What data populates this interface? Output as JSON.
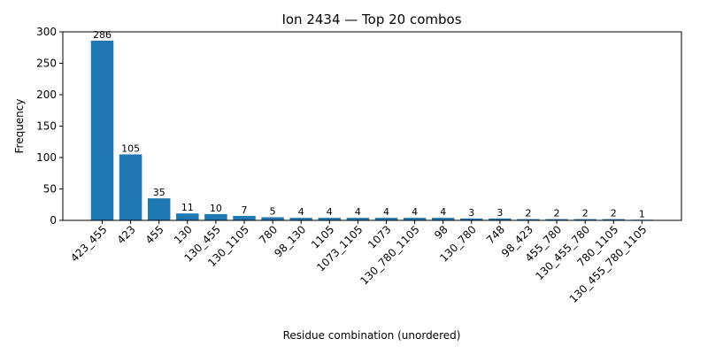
{
  "chart_data": {
    "type": "bar",
    "title": "Ion 2434 — Top 20 combos",
    "xlabel": "Residue combination (unordered)",
    "ylabel": "Frequency",
    "ylim": [
      0,
      300
    ],
    "yticks": [
      0,
      50,
      100,
      150,
      200,
      250,
      300
    ],
    "grid": false,
    "bar_color": "#1f77b4",
    "categories": [
      "423_455",
      "423",
      "455",
      "130",
      "130_455",
      "130_1105",
      "780",
      "98_130",
      "1105",
      "1073_1105",
      "1073",
      "130_780_1105",
      "98",
      "130_780",
      "748",
      "98_423",
      "455_780",
      "130_455_780",
      "780_1105",
      "130_455_780_1105"
    ],
    "values": [
      286,
      105,
      35,
      11,
      10,
      7,
      5,
      4,
      4,
      4,
      4,
      4,
      4,
      3,
      3,
      2,
      2,
      2,
      2,
      1
    ]
  }
}
